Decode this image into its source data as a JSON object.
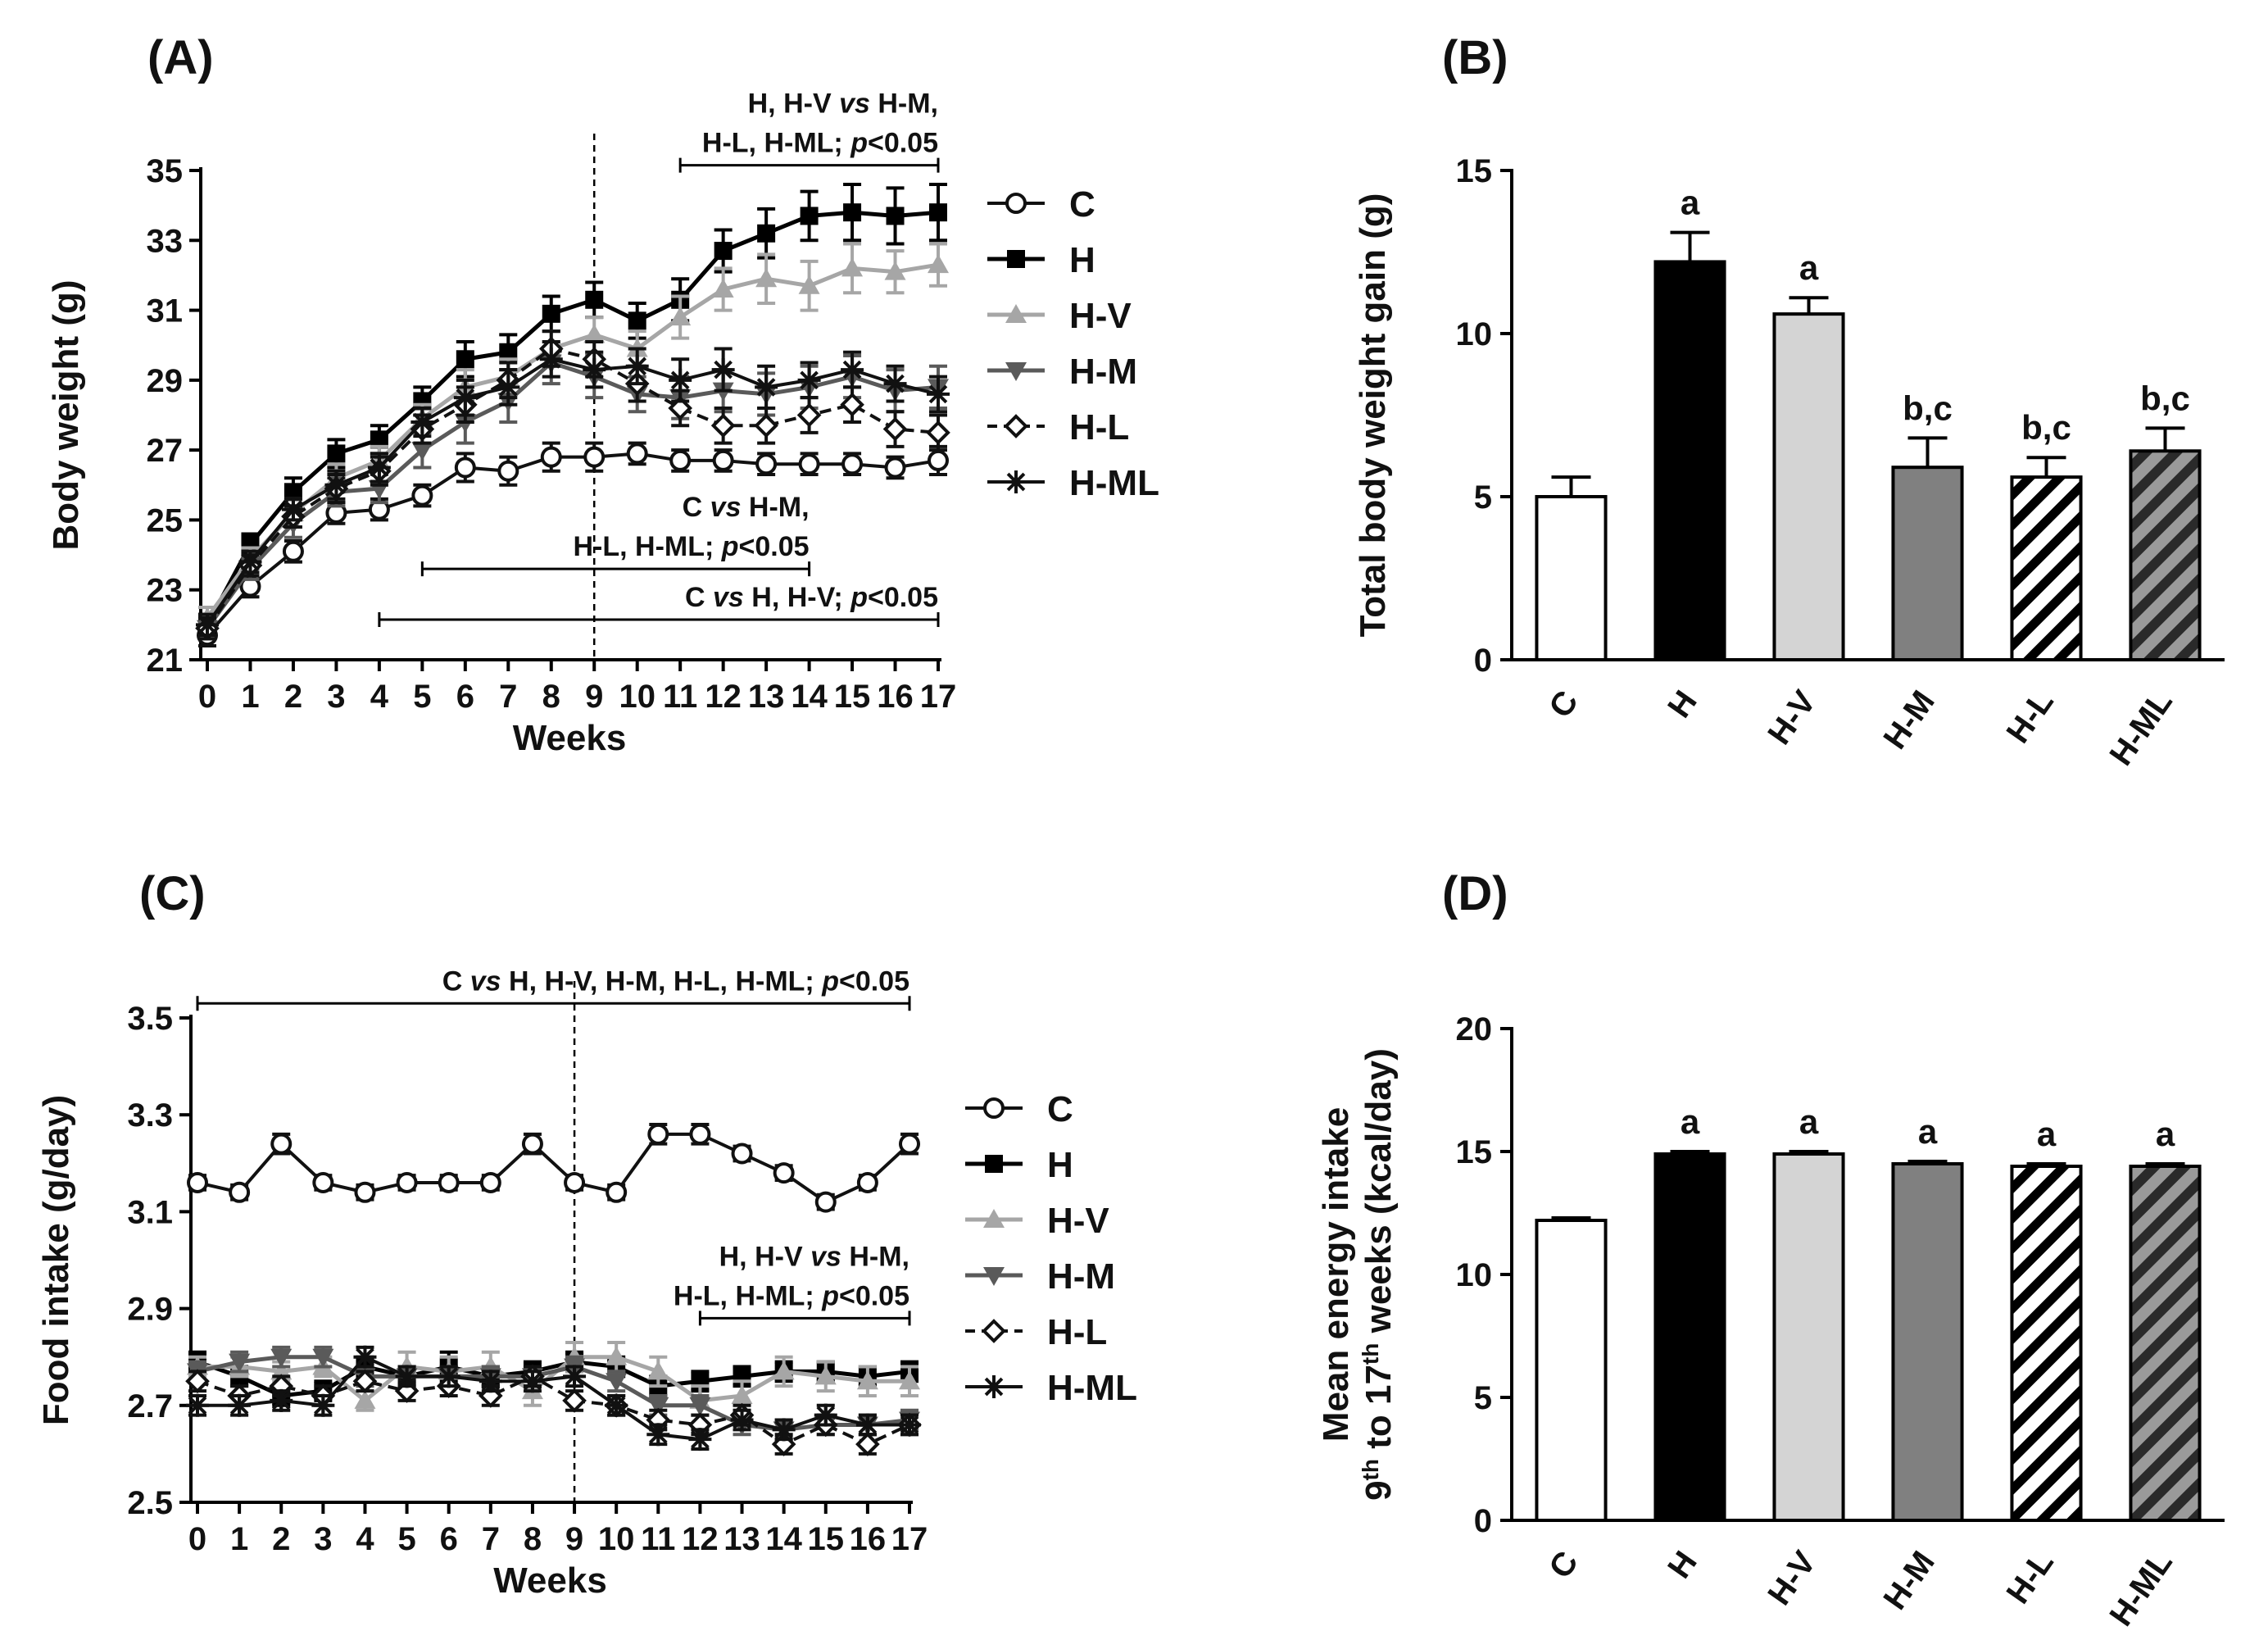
{
  "colors": {
    "C": "#ffffff",
    "H": "#000000",
    "H-V": "#aaaaaa",
    "H-M": "#555555",
    "H-L": "#222222",
    "H-ML": "#111111",
    "bar_C": "#ffffff",
    "bar_H": "#000000",
    "bar_H-V": "#d4d4d4",
    "bar_H-M": "#808080"
  },
  "chart_data": [
    {
      "id": "A",
      "panel_label": "(A)",
      "type": "line",
      "xlabel": "Weeks",
      "ylabel": "Body weight (g)",
      "ylim": [
        21,
        35
      ],
      "yticks": [
        21,
        23,
        25,
        27,
        29,
        31,
        33,
        35
      ],
      "xticks": [
        0,
        1,
        2,
        3,
        4,
        5,
        6,
        7,
        8,
        9,
        10,
        11,
        12,
        13,
        14,
        15,
        16,
        17
      ],
      "x": [
        0,
        1,
        2,
        3,
        4,
        5,
        6,
        7,
        8,
        9,
        10,
        11,
        12,
        13,
        14,
        15,
        16,
        17
      ],
      "vline": 9,
      "series": [
        {
          "name": "C",
          "marker": "circle",
          "dash": false,
          "values": [
            21.7,
            23.1,
            24.1,
            25.2,
            25.3,
            25.7,
            26.5,
            26.4,
            26.8,
            26.8,
            26.9,
            26.7,
            26.7,
            26.6,
            26.6,
            26.6,
            26.5,
            26.7
          ],
          "err": [
            0.3,
            0.3,
            0.3,
            0.3,
            0.3,
            0.3,
            0.4,
            0.4,
            0.4,
            0.4,
            0.3,
            0.3,
            0.3,
            0.3,
            0.3,
            0.3,
            0.3,
            0.4
          ]
        },
        {
          "name": "H",
          "marker": "square",
          "dash": false,
          "values": [
            22.0,
            24.3,
            25.8,
            26.9,
            27.3,
            28.4,
            29.6,
            29.8,
            30.9,
            31.3,
            30.7,
            31.3,
            32.7,
            33.2,
            33.7,
            33.8,
            33.7,
            33.8
          ],
          "err": [
            0.3,
            0.3,
            0.4,
            0.4,
            0.4,
            0.4,
            0.5,
            0.5,
            0.5,
            0.5,
            0.5,
            0.6,
            0.6,
            0.7,
            0.7,
            0.8,
            0.8,
            0.8
          ]
        },
        {
          "name": "H-V",
          "marker": "triangle-up",
          "dash": false,
          "values": [
            22.2,
            23.9,
            25.2,
            26.2,
            26.7,
            27.9,
            28.8,
            29.1,
            29.9,
            30.3,
            29.9,
            30.8,
            31.6,
            31.9,
            31.7,
            32.2,
            32.1,
            32.3
          ],
          "err": [
            0.3,
            0.3,
            0.4,
            0.4,
            0.4,
            0.4,
            0.5,
            0.5,
            0.5,
            0.5,
            0.5,
            0.6,
            0.6,
            0.7,
            0.7,
            0.7,
            0.6,
            0.6
          ]
        },
        {
          "name": "H-M",
          "marker": "triangle-down",
          "dash": false,
          "values": [
            21.9,
            23.6,
            24.9,
            25.8,
            25.9,
            27.0,
            27.8,
            28.4,
            29.5,
            29.1,
            28.6,
            28.5,
            28.7,
            28.6,
            28.8,
            29.1,
            28.7,
            28.8
          ],
          "err": [
            0.3,
            0.3,
            0.4,
            0.4,
            0.4,
            0.5,
            0.6,
            0.6,
            0.6,
            0.6,
            0.5,
            0.6,
            0.6,
            0.6,
            0.6,
            0.6,
            0.6,
            0.6
          ]
        },
        {
          "name": "H-L",
          "marker": "diamond",
          "dash": true,
          "values": [
            21.9,
            23.7,
            25.1,
            25.9,
            26.4,
            27.6,
            28.3,
            29.0,
            29.9,
            29.6,
            28.9,
            28.2,
            27.7,
            27.7,
            28.0,
            28.3,
            27.6,
            27.5
          ],
          "err": [
            0.3,
            0.3,
            0.3,
            0.4,
            0.4,
            0.4,
            0.5,
            0.5,
            0.5,
            0.5,
            0.5,
            0.5,
            0.5,
            0.5,
            0.5,
            0.5,
            0.5,
            0.5
          ]
        },
        {
          "name": "H-ML",
          "marker": "star",
          "dash": false,
          "values": [
            22.0,
            23.8,
            25.3,
            26.0,
            26.5,
            27.8,
            28.5,
            28.8,
            29.6,
            29.3,
            29.4,
            29.0,
            29.3,
            28.8,
            29.0,
            29.3,
            28.9,
            28.6
          ],
          "err": [
            0.3,
            0.3,
            0.3,
            0.4,
            0.4,
            0.4,
            0.5,
            0.5,
            0.5,
            0.5,
            0.5,
            0.6,
            0.6,
            0.6,
            0.5,
            0.5,
            0.5,
            0.5
          ]
        }
      ],
      "brackets": [
        {
          "x_from": 11,
          "x_to": 17,
          "y": 35.15,
          "lines": [
            "H, H-V vs H-M,",
            "H-L, H-ML; p<0.05"
          ]
        },
        {
          "x_from": 5,
          "x_to": 14,
          "y": 23.6,
          "lines": [
            "C vs H-M,",
            "H-L, H-ML; p<0.05"
          ]
        },
        {
          "x_from": 4,
          "x_to": 17,
          "y": 22.15,
          "lines": [
            "C vs H, H-V; p<0.05"
          ]
        }
      ],
      "legend": [
        "C",
        "H",
        "H-V",
        "H-M",
        "H-L",
        "H-ML"
      ]
    },
    {
      "id": "B",
      "panel_label": "(B)",
      "type": "bar",
      "ylabel": "Total body weight gain (g)",
      "ylim": [
        0,
        15
      ],
      "yticks": [
        0,
        5,
        10,
        15
      ],
      "categories": [
        "C",
        "H",
        "H-V",
        "H-M",
        "H-L",
        "H-ML"
      ],
      "values": [
        5.0,
        12.2,
        10.6,
        5.9,
        5.6,
        6.4
      ],
      "err": [
        0.6,
        0.9,
        0.5,
        0.9,
        0.6,
        0.7
      ],
      "letters": [
        "",
        "a",
        "a",
        "b,c",
        "b,c",
        "b,c"
      ],
      "fills": [
        "white",
        "black",
        "lightgray",
        "gray",
        "hatch-light",
        "hatch-dark"
      ]
    },
    {
      "id": "C",
      "panel_label": "(C)",
      "type": "line",
      "xlabel": "Weeks",
      "ylabel": "Food intake (g/day)",
      "ylim": [
        2.5,
        3.5
      ],
      "yticks": [
        2.5,
        2.7,
        2.9,
        3.1,
        3.3,
        3.5
      ],
      "xticks": [
        0,
        1,
        2,
        3,
        4,
        5,
        6,
        7,
        8,
        9,
        10,
        11,
        12,
        13,
        14,
        15,
        16,
        17
      ],
      "x": [
        0,
        1,
        2,
        3,
        4,
        5,
        6,
        7,
        8,
        9,
        10,
        11,
        12,
        13,
        14,
        15,
        16,
        17
      ],
      "vline": 9,
      "series": [
        {
          "name": "C",
          "marker": "circle",
          "dash": false,
          "values": [
            3.16,
            3.14,
            3.24,
            3.16,
            3.14,
            3.16,
            3.16,
            3.16,
            3.24,
            3.16,
            3.14,
            3.26,
            3.26,
            3.22,
            3.18,
            3.12,
            3.16,
            3.24
          ],
          "err": [
            0.015,
            0.015,
            0.02,
            0.015,
            0.015,
            0.015,
            0.015,
            0.015,
            0.02,
            0.015,
            0.015,
            0.02,
            0.02,
            0.015,
            0.015,
            0.015,
            0.015,
            0.02
          ]
        },
        {
          "name": "H",
          "marker": "square",
          "dash": false,
          "values": [
            2.79,
            2.76,
            2.72,
            2.73,
            2.78,
            2.76,
            2.78,
            2.76,
            2.77,
            2.79,
            2.78,
            2.74,
            2.75,
            2.76,
            2.77,
            2.77,
            2.76,
            2.77
          ],
          "err": [
            0.02,
            0.02,
            0.02,
            0.02,
            0.02,
            0.02,
            0.03,
            0.02,
            0.02,
            0.02,
            0.02,
            0.02,
            0.02,
            0.02,
            0.02,
            0.02,
            0.02,
            0.02
          ]
        },
        {
          "name": "H-V",
          "marker": "triangle-up",
          "dash": false,
          "values": [
            2.78,
            2.78,
            2.77,
            2.78,
            2.71,
            2.78,
            2.77,
            2.78,
            2.73,
            2.8,
            2.8,
            2.77,
            2.71,
            2.72,
            2.77,
            2.76,
            2.75,
            2.75
          ],
          "err": [
            0.02,
            0.02,
            0.02,
            0.02,
            0.02,
            0.03,
            0.03,
            0.03,
            0.03,
            0.03,
            0.03,
            0.03,
            0.03,
            0.03,
            0.03,
            0.03,
            0.03,
            0.03
          ]
        },
        {
          "name": "H-M",
          "marker": "triangle-down",
          "dash": false,
          "values": [
            2.77,
            2.79,
            2.8,
            2.8,
            2.76,
            2.76,
            2.76,
            2.76,
            2.76,
            2.78,
            2.75,
            2.7,
            2.7,
            2.66,
            2.65,
            2.66,
            2.66,
            2.67
          ],
          "err": [
            0.02,
            0.02,
            0.02,
            0.02,
            0.02,
            0.02,
            0.02,
            0.02,
            0.02,
            0.02,
            0.02,
            0.02,
            0.02,
            0.02,
            0.02,
            0.02,
            0.02,
            0.02
          ]
        },
        {
          "name": "H-L",
          "marker": "diamond",
          "dash": true,
          "values": [
            2.75,
            2.72,
            2.74,
            2.72,
            2.75,
            2.73,
            2.74,
            2.72,
            2.76,
            2.71,
            2.7,
            2.67,
            2.66,
            2.68,
            2.62,
            2.66,
            2.62,
            2.66
          ],
          "err": [
            0.02,
            0.02,
            0.02,
            0.02,
            0.02,
            0.02,
            0.02,
            0.02,
            0.02,
            0.02,
            0.02,
            0.02,
            0.02,
            0.02,
            0.02,
            0.02,
            0.02,
            0.02
          ]
        },
        {
          "name": "H-ML",
          "marker": "star",
          "dash": false,
          "values": [
            2.7,
            2.7,
            2.71,
            2.7,
            2.8,
            2.76,
            2.76,
            2.75,
            2.75,
            2.76,
            2.7,
            2.64,
            2.63,
            2.67,
            2.65,
            2.68,
            2.66,
            2.66
          ],
          "err": [
            0.02,
            0.02,
            0.02,
            0.02,
            0.02,
            0.02,
            0.02,
            0.02,
            0.02,
            0.02,
            0.02,
            0.02,
            0.02,
            0.02,
            0.02,
            0.02,
            0.02,
            0.02
          ]
        }
      ],
      "brackets": [
        {
          "x_from": 0,
          "x_to": 17,
          "y": 3.53,
          "lines": [
            "C vs H, H-V, H-M, H-L, H-ML; p<0.05"
          ]
        },
        {
          "x_from": 12,
          "x_to": 17,
          "y": 2.88,
          "lines": [
            "H, H-V vs H-M,",
            "H-L, H-ML; p<0.05"
          ]
        }
      ],
      "legend": [
        "C",
        "H",
        "H-V",
        "H-M",
        "H-L",
        "H-ML"
      ]
    },
    {
      "id": "D",
      "panel_label": "(D)",
      "type": "bar",
      "ylabel_line1": "Mean energy intake",
      "ylabel_line2": "9th to 17th weeks (kcal/day)",
      "ylim": [
        0,
        20
      ],
      "yticks": [
        0,
        5,
        10,
        15,
        20
      ],
      "categories": [
        "C",
        "H",
        "H-V",
        "H-M",
        "H-L",
        "H-ML"
      ],
      "values": [
        12.2,
        14.9,
        14.9,
        14.5,
        14.4,
        14.4
      ],
      "err": [
        0.1,
        0.1,
        0.1,
        0.1,
        0.1,
        0.1
      ],
      "letters": [
        "",
        "a",
        "a",
        "a",
        "a",
        "a"
      ],
      "fills": [
        "white",
        "black",
        "lightgray",
        "gray",
        "hatch-light",
        "hatch-dark"
      ]
    }
  ]
}
